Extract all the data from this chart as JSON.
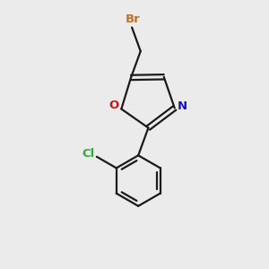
{
  "background_color": "#ebebeb",
  "bond_color": "#1a1a1a",
  "br_color": "#b87333",
  "cl_color": "#3aaa35",
  "n_color": "#1414cc",
  "o_color": "#cc1414",
  "br_label": "Br",
  "cl_label": "Cl",
  "n_label": "N",
  "o_label": "O",
  "figsize": [
    3.0,
    3.0
  ],
  "dpi": 100
}
